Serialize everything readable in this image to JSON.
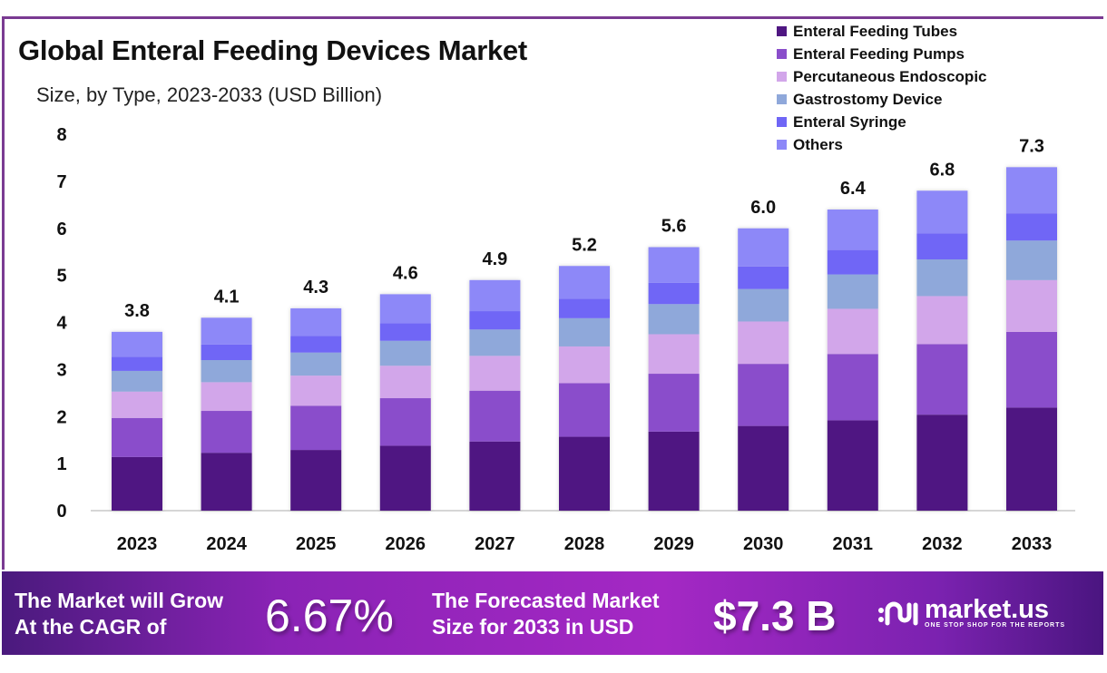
{
  "header": {
    "title": "Global Enteral Feeding Devices Market",
    "subtitle": "Size, by Type, 2023-2033 (USD Billion)"
  },
  "legend": [
    {
      "label": "Enteral Feeding Tubes",
      "color": "#4f1782"
    },
    {
      "label": "Enteral Feeding Pumps",
      "color": "#8a4ecb"
    },
    {
      "label": "Percutaneous Endoscopic",
      "color": "#d2a6ea"
    },
    {
      "label": "Gastrostomy Device",
      "color": "#8fa8da"
    },
    {
      "label": "Enteral Syringe",
      "color": "#6f66f6"
    },
    {
      "label": "Others",
      "color": "#8d88f8"
    }
  ],
  "chart_data": {
    "type": "bar",
    "stacked": true,
    "title": "Global Enteral Feeding Devices Market",
    "subtitle": "Size, by Type, 2023-2033 (USD Billion)",
    "xlabel": "",
    "ylabel": "",
    "ylim": [
      0,
      8
    ],
    "yticks": [
      0,
      1,
      2,
      3,
      4,
      5,
      6,
      7,
      8
    ],
    "grid": false,
    "legend_position": "top-right",
    "categories": [
      "2023",
      "2024",
      "2025",
      "2026",
      "2027",
      "2028",
      "2029",
      "2030",
      "2031",
      "2032",
      "2033"
    ],
    "totals": [
      3.8,
      4.1,
      4.3,
      4.6,
      4.9,
      5.2,
      5.6,
      6.0,
      6.4,
      6.8,
      7.3
    ],
    "total_labels": [
      "3.8",
      "4.1",
      "4.3",
      "4.6",
      "4.9",
      "5.2",
      "5.6",
      "6.0",
      "6.4",
      "6.8",
      "7.3"
    ],
    "series": [
      {
        "name": "Enteral Feeding Tubes",
        "values": [
          1.14,
          1.23,
          1.29,
          1.38,
          1.47,
          1.57,
          1.68,
          1.8,
          1.92,
          2.04,
          2.19
        ]
      },
      {
        "name": "Enteral Feeding Pumps",
        "values": [
          0.83,
          0.89,
          0.94,
          1.01,
          1.08,
          1.14,
          1.23,
          1.32,
          1.41,
          1.5,
          1.61
        ]
      },
      {
        "name": "Percutaneous Endoscopic",
        "values": [
          0.56,
          0.61,
          0.64,
          0.69,
          0.74,
          0.78,
          0.84,
          0.9,
          0.96,
          1.02,
          1.1
        ]
      },
      {
        "name": "Gastrostomy Device",
        "values": [
          0.44,
          0.47,
          0.49,
          0.53,
          0.56,
          0.6,
          0.64,
          0.69,
          0.73,
          0.78,
          0.84
        ]
      },
      {
        "name": "Enteral Syringe",
        "values": [
          0.3,
          0.33,
          0.35,
          0.37,
          0.39,
          0.41,
          0.45,
          0.48,
          0.52,
          0.55,
          0.58
        ]
      },
      {
        "name": "Others",
        "values": [
          0.53,
          0.57,
          0.59,
          0.62,
          0.66,
          0.7,
          0.76,
          0.81,
          0.86,
          0.91,
          0.98
        ]
      }
    ]
  },
  "footer": {
    "cagr_text_line1": "The Market will Grow",
    "cagr_text_line2": "At the CAGR of",
    "cagr_value": "6.67%",
    "forecast_text_line1": "The Forecasted Market",
    "forecast_text_line2": "Size for 2033 in USD",
    "forecast_value": "$7.3 B",
    "brand_name": "market.us",
    "brand_tagline": "ONE STOP SHOP FOR THE REPORTS"
  }
}
